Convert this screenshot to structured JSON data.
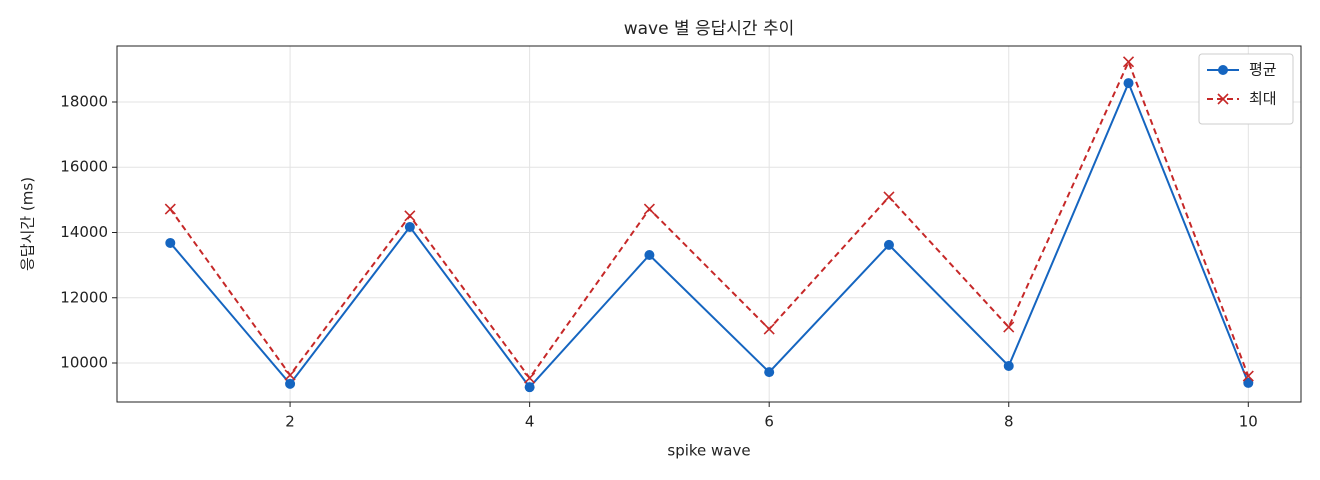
{
  "chart_data": {
    "type": "line",
    "title": "wave 별 응답시간 추이",
    "x_label": "spike wave",
    "y_label": "응답시간 (ms)",
    "x": [
      1,
      2,
      3,
      4,
      5,
      6,
      7,
      8,
      9,
      10
    ],
    "series": [
      {
        "name": "평균",
        "color": "#1565c0",
        "marker": "circle",
        "dashed": false,
        "values": [
          13680,
          9360,
          14170,
          9260,
          13310,
          9720,
          13620,
          9910,
          18580,
          9390
        ]
      },
      {
        "name": "최대",
        "color": "#c62828",
        "marker": "x",
        "dashed": true,
        "values": [
          14720,
          9630,
          14510,
          9540,
          14720,
          11040,
          15090,
          11100,
          19230,
          9600
        ]
      }
    ],
    "xlim": [
      0.555,
      10.44
    ],
    "xticks": [
      2,
      4,
      6,
      8,
      10
    ],
    "ylim": [
      8805,
      19716
    ],
    "yticks": [
      10000,
      12000,
      14000,
      16000,
      18000
    ],
    "grid": true,
    "legend": "upper-right"
  }
}
